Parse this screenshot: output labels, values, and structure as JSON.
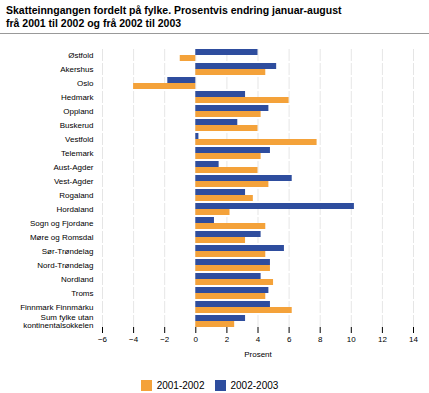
{
  "chart_data": {
    "type": "bar",
    "orientation": "horizontal",
    "title": "Skatteinngangen fordelt på fylke. Prosentvis endring januar-august",
    "subtitle": "frå 2001 til 2002 og frå 2002 til 2003",
    "categories": [
      "Østfold",
      "Akershus",
      "Oslo",
      "Hedmark",
      "Oppland",
      "Buskerud",
      "Vestfold",
      "Telemark",
      "Aust-Agder",
      "Vest-Agder",
      "Rogaland",
      "Hordaland",
      "Sogn og Fjordane",
      "Møre og Romsdal",
      "Sør-Trøndelag",
      "Nord-Trøndelag",
      "Nordland",
      "Troms",
      "Finnmark Finnmárku",
      "Sum fylke utan\nkontinentalsokkelen"
    ],
    "series": [
      {
        "name": "2001-2002",
        "color": "#f4a23a",
        "values": [
          -1.0,
          4.5,
          -4.0,
          6.0,
          4.2,
          4.0,
          7.8,
          4.2,
          4.0,
          4.7,
          3.7,
          2.2,
          4.5,
          3.2,
          4.5,
          4.8,
          5.0,
          4.5,
          6.2,
          2.5
        ]
      },
      {
        "name": "2002-2003",
        "color": "#2e4d9e",
        "values": [
          4.0,
          5.2,
          -1.8,
          3.2,
          4.7,
          2.7,
          0.2,
          4.8,
          1.5,
          6.2,
          3.2,
          10.2,
          1.2,
          4.2,
          5.7,
          4.8,
          4.2,
          4.7,
          4.8,
          3.2
        ]
      }
    ],
    "xlabel": "Prosent",
    "xlim": [
      -6,
      14
    ],
    "xticks": [
      -6,
      -4,
      -2,
      0,
      2,
      4,
      6,
      8,
      10,
      12,
      14
    ],
    "grid": true,
    "legend": "bottom"
  }
}
